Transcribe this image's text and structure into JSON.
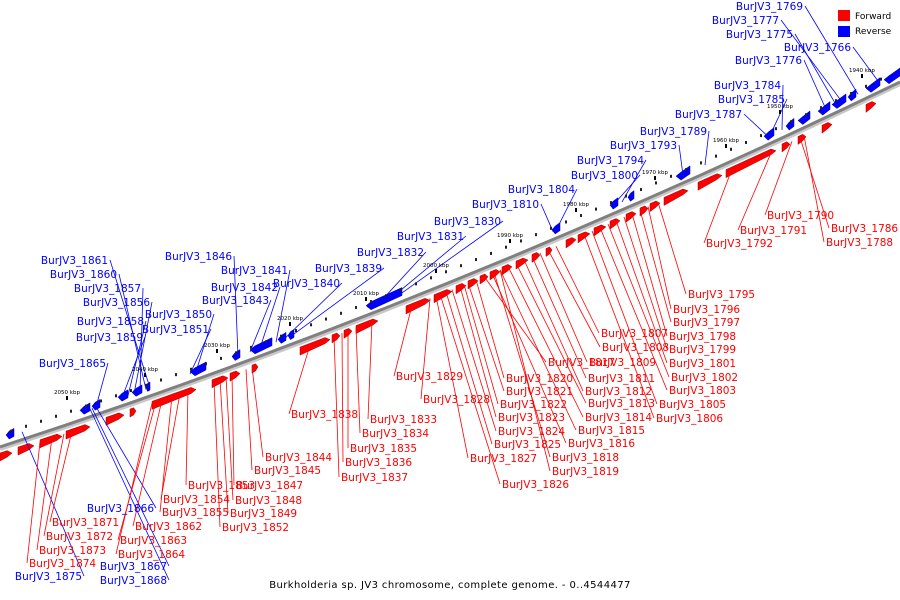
{
  "caption": "Burkholderia sp. JV3 chromosome, complete genome. - 0..4544477",
  "legend": [
    {
      "label": "Forward",
      "color": "#ff0000"
    },
    {
      "label": "Reverse",
      "color": "#0000ff"
    }
  ],
  "colors": {
    "forward": "#ff0000",
    "reverse": "#0000ff",
    "backbone": "#808080"
  },
  "ticks": [
    "1940 kbp",
    "1950 kbp",
    "1960 kbp",
    "1970 kbp",
    "1980 kbp",
    "1990 kbp",
    "2000 kbp",
    "2010 kbp",
    "2020 kbp",
    "2030 kbp",
    "2040 kbp",
    "2050 kbp"
  ],
  "reverse_labels": [
    "BurJV3_1769",
    "BurJV3_1777",
    "BurJV3_1775",
    "BurJV3_1766",
    "BurJV3_1776",
    "BurJV3_1784",
    "BurJV3_1785",
    "BurJV3_1787",
    "BurJV3_1789",
    "BurJV3_1793",
    "BurJV3_1794",
    "BurJV3_1800",
    "BurJV3_1804",
    "BurJV3_1810",
    "BurJV3_1830",
    "BurJV3_1831",
    "BurJV3_1832",
    "BurJV3_1839",
    "BurJV3_1840",
    "BurJV3_1841",
    "BurJV3_1842",
    "BurJV3_1843",
    "BurJV3_1846",
    "BurJV3_1850",
    "BurJV3_1851",
    "BurJV3_1861",
    "BurJV3_1860",
    "BurJV3_1857",
    "BurJV3_1856",
    "BurJV3_1858",
    "BurJV3_1859",
    "BurJV3_1865",
    "BurJV3_1866",
    "BurJV3_1867",
    "BurJV3_1868",
    "BurJV3_1875"
  ],
  "forward_labels": [
    "BurJV3_1790",
    "BurJV3_1786",
    "BurJV3_1791",
    "BurJV3_1788",
    "BurJV3_1792",
    "BurJV3_1795",
    "BurJV3_1796",
    "BurJV3_1797",
    "BurJV3_1798",
    "BurJV3_1799",
    "BurJV3_1801",
    "BurJV3_1802",
    "BurJV3_1803",
    "BurJV3_1805",
    "BurJV3_1806",
    "BurJV3_1807",
    "BurJV3_1808",
    "BurJV3_1809",
    "BurJV3_1811",
    "BurJV3_1812",
    "BurJV3_1813",
    "BurJV3_1814",
    "BurJV3_1815",
    "BurJV3_1816",
    "BurJV3_1817",
    "BurJV3_1818",
    "BurJV3_1819",
    "BurJV3_1820",
    "BurJV3_1821",
    "BurJV3_1822",
    "BurJV3_1823",
    "BurJV3_1824",
    "BurJV3_1825",
    "BurJV3_1826",
    "BurJV3_1827",
    "BurJV3_1828",
    "BurJV3_1829",
    "BurJV3_1833",
    "BurJV3_1834",
    "BurJV3_1835",
    "BurJV3_1836",
    "BurJV3_1837",
    "BurJV3_1838",
    "BurJV3_1844",
    "BurJV3_1845",
    "BurJV3_1847",
    "BurJV3_1848",
    "BurJV3_1849",
    "BurJV3_1852",
    "BurJV3_1853",
    "BurJV3_1854",
    "BurJV3_1855",
    "BurJV3_1862",
    "BurJV3_1863",
    "BurJV3_1864",
    "BurJV3_1871",
    "BurJV3_1872",
    "BurJV3_1873",
    "BurJV3_1874"
  ]
}
